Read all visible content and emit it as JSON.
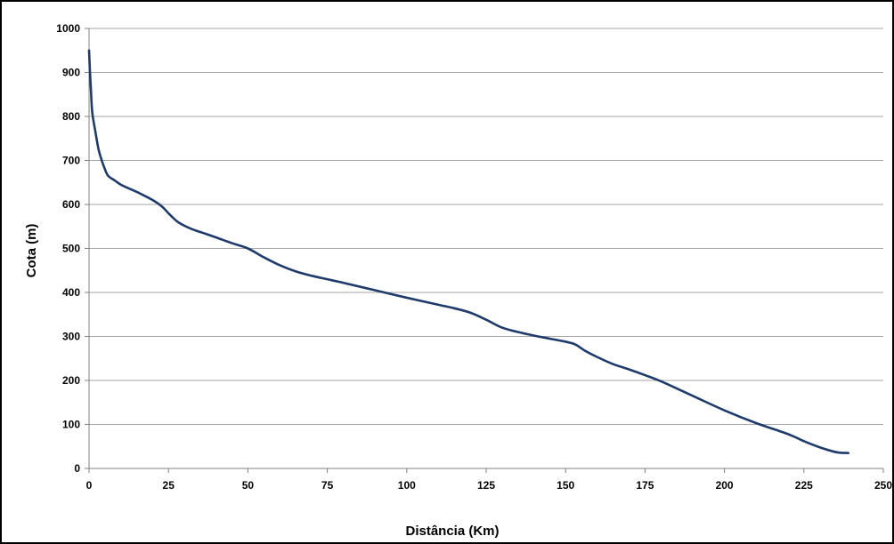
{
  "chart_data": {
    "type": "line",
    "title": "",
    "xlabel": "Distância (Km)",
    "ylabel": "Cota (m)",
    "xlim": [
      0,
      250
    ],
    "ylim": [
      0,
      1000
    ],
    "xticks": [
      0,
      25,
      50,
      75,
      100,
      125,
      150,
      175,
      200,
      225,
      250
    ],
    "yticks": [
      0,
      100,
      200,
      300,
      400,
      500,
      600,
      700,
      800,
      900,
      1000
    ],
    "grid": "horizontal",
    "legend": "none",
    "line_color": "#1f3b6b",
    "series": [
      {
        "x": [
          0,
          0.3,
          0.6,
          1,
          2,
          3,
          4,
          5,
          6,
          8,
          10,
          13,
          16,
          20,
          23,
          25,
          28,
          32,
          36,
          40,
          45,
          50,
          55,
          60,
          65,
          70,
          75,
          80,
          90,
          100,
          110,
          115,
          120,
          125,
          130,
          135,
          140,
          145,
          150,
          153,
          156,
          160,
          165,
          170,
          175,
          180,
          190,
          200,
          210,
          220,
          225,
          230,
          234,
          236,
          239
        ],
        "y": [
          950,
          900,
          860,
          810,
          765,
          725,
          700,
          680,
          665,
          655,
          645,
          635,
          625,
          610,
          595,
          580,
          560,
          545,
          535,
          525,
          512,
          500,
          480,
          462,
          448,
          438,
          430,
          422,
          405,
          388,
          372,
          364,
          354,
          338,
          320,
          310,
          302,
          295,
          288,
          282,
          268,
          253,
          237,
          225,
          212,
          198,
          165,
          132,
          103,
          78,
          62,
          48,
          39,
          36,
          35
        ]
      }
    ]
  }
}
